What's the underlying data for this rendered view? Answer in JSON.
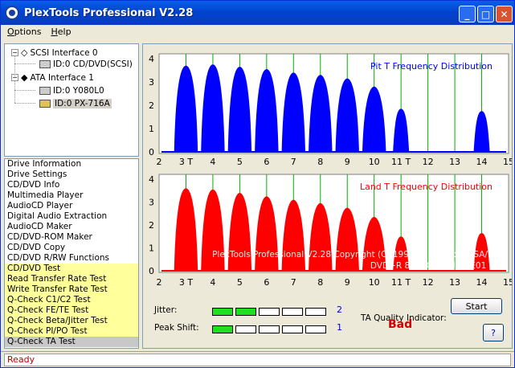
{
  "window": {
    "title": "PlexTools Professional V2.28"
  },
  "menu": {
    "options": "Options",
    "help": "Help",
    "options_key": "O",
    "help_key": "H"
  },
  "tree": {
    "scsi": "SCSI Interface 0",
    "scsi_dev": "ID:0  CD/DVD(SCSI)",
    "ata": "ATA Interface 1",
    "ata_dev1": "ID:0  Y080L0",
    "ata_dev2": "ID:0  PX-716A"
  },
  "functions": [
    "Drive Information",
    "Drive Settings",
    "CD/DVD Info",
    "Multimedia Player",
    "AudioCD Player",
    "Digital Audio Extraction",
    "AudioCD Maker",
    "CD/DVD-ROM Maker",
    "CD/DVD Copy",
    "CD/DVD R/RW Functions",
    "CD/DVD Test",
    "Read Transfer Rate Test",
    "Write Transfer Rate Test",
    "Q-Check C1/C2 Test",
    "Q-Check FE/TE Test",
    "Q-Check Beta/Jitter Test",
    "Q-Check PI/PO Test",
    "Q-Check TA Test"
  ],
  "chart_data": [
    {
      "type": "area",
      "title": "Pit T Frequency Distribution",
      "color": "#0000ff",
      "x_ticks": [
        "2",
        "3 T",
        "4",
        "5",
        "6",
        "7",
        "8",
        "9",
        "10",
        "11 T",
        "12",
        "13",
        "14",
        "15"
      ],
      "y_ticks": [
        "0",
        "1",
        "2",
        "3",
        "4"
      ],
      "xlim": [
        2,
        15
      ],
      "ylim": [
        0,
        4
      ],
      "peaks": [
        {
          "x": 3,
          "y": 3.7
        },
        {
          "x": 4,
          "y": 3.75
        },
        {
          "x": 5,
          "y": 3.65
        },
        {
          "x": 6,
          "y": 3.55
        },
        {
          "x": 7,
          "y": 3.4
        },
        {
          "x": 8,
          "y": 3.3
        },
        {
          "x": 9,
          "y": 3.15
        },
        {
          "x": 10,
          "y": 2.8
        },
        {
          "x": 11,
          "y": 1.85
        },
        {
          "x": 14,
          "y": 1.75
        }
      ]
    },
    {
      "type": "area",
      "title": "Land T Frequency Distribution",
      "color": "#ff0000",
      "x_ticks": [
        "2",
        "3 T",
        "4",
        "5",
        "6",
        "7",
        "8",
        "9",
        "10",
        "11 T",
        "12",
        "13",
        "14",
        "15"
      ],
      "y_ticks": [
        "0",
        "1",
        "2",
        "3",
        "4"
      ],
      "xlim": [
        2,
        15
      ],
      "ylim": [
        0,
        4
      ],
      "peaks": [
        {
          "x": 3,
          "y": 3.6
        },
        {
          "x": 4,
          "y": 3.55
        },
        {
          "x": 5,
          "y": 3.4
        },
        {
          "x": 6,
          "y": 3.25
        },
        {
          "x": 7,
          "y": 3.1
        },
        {
          "x": 8,
          "y": 2.95
        },
        {
          "x": 9,
          "y": 2.75
        },
        {
          "x": 10,
          "y": 2.35
        },
        {
          "x": 11,
          "y": 1.5
        },
        {
          "x": 14,
          "y": 1.65
        }
      ]
    }
  ],
  "watermark": {
    "line1": "PlexTools Professional V2.28 Copyright (C) 1999-2005 Plextor SA/NV",
    "line2": "DVD+R  8.0X  CMC MAG E01 00"
  },
  "controls": {
    "jitter_label": "Jitter:",
    "jitter_value": "2",
    "jitter_level": 2,
    "peak_label": "Peak Shift:",
    "peak_value": "1",
    "peak_level": 1,
    "ta_label": "TA Quality Indicator:",
    "ta_value": "Bad",
    "start": "Start",
    "help": "?"
  },
  "status": "Ready"
}
